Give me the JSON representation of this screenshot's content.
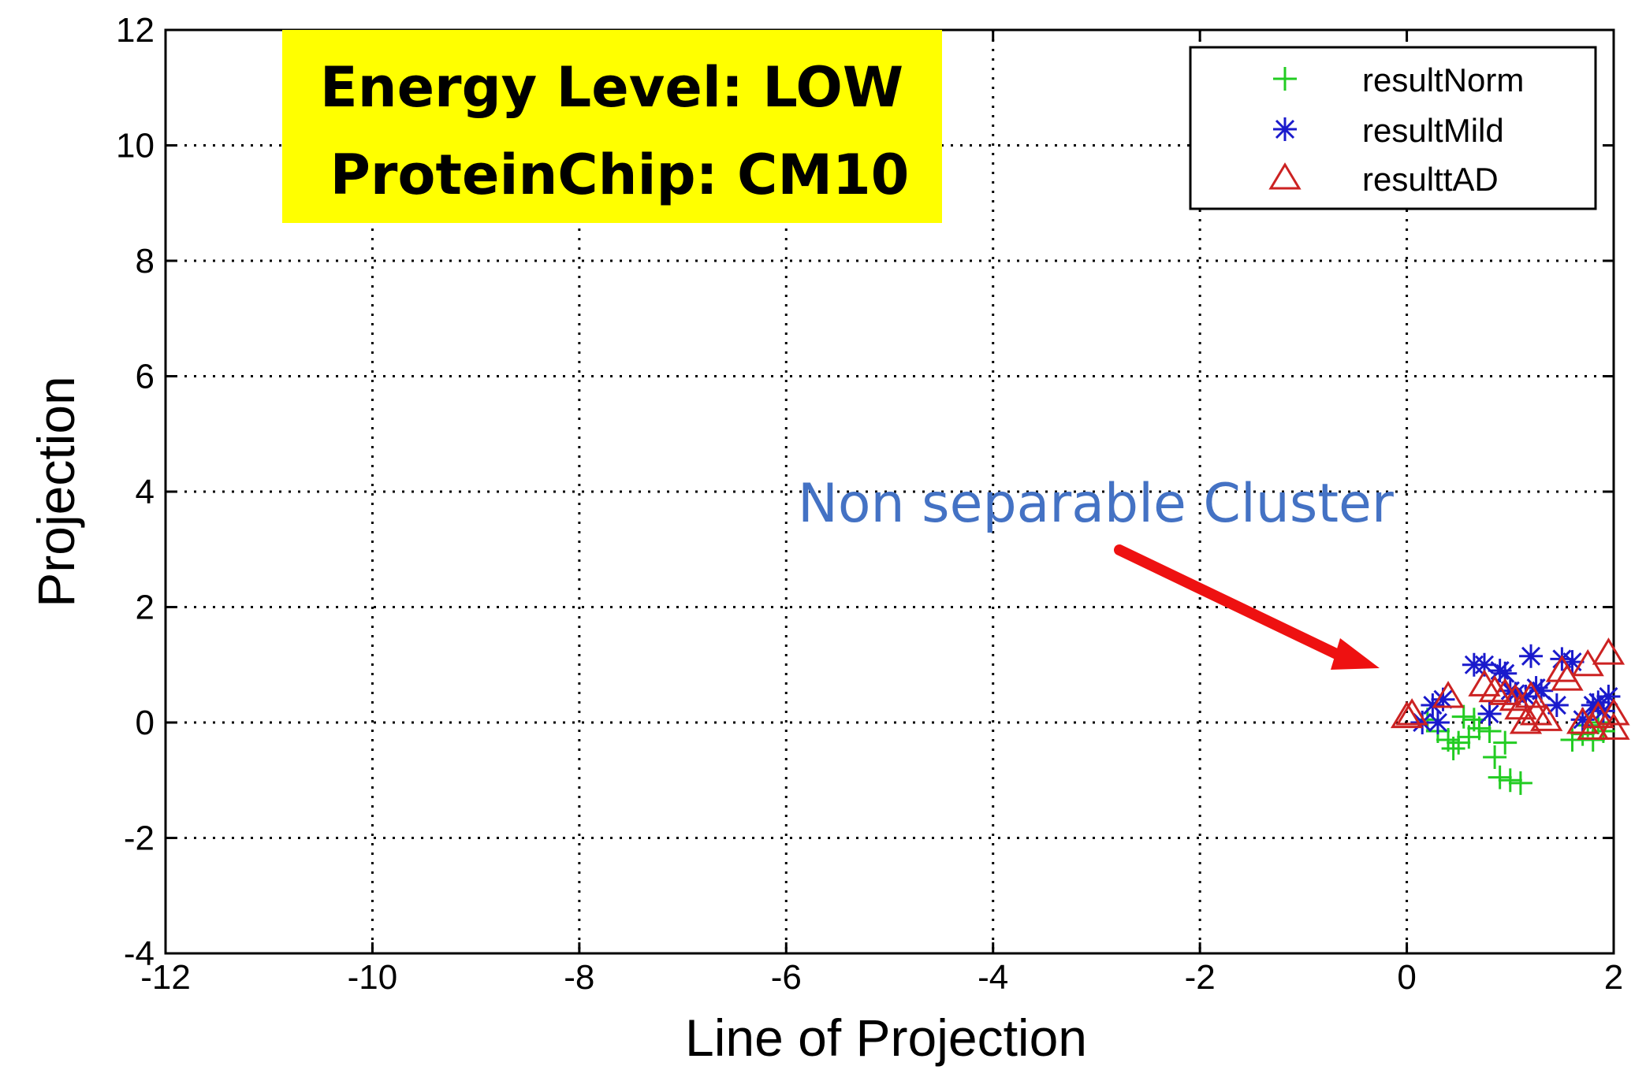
{
  "colors": {
    "norm": "#22cc22",
    "mild": "#1a1acc",
    "ad": "#cc2222",
    "banner": "#ffff00",
    "annotation": "#4472c4",
    "arrow": "#ee1111"
  },
  "banner": {
    "line1": "Energy Level: LOW",
    "line2": "ProteinChip: CM10"
  },
  "annotation": {
    "text": "Non separable Cluster"
  },
  "chart_data": {
    "type": "scatter",
    "title": "",
    "xlabel": "Line of Projection",
    "ylabel": "Projection",
    "xlim": [
      -12,
      2
    ],
    "ylim": [
      -4,
      12
    ],
    "grid": true,
    "xticks": [
      -12,
      -10,
      -8,
      -6,
      -4,
      -2,
      0,
      2
    ],
    "yticks": [
      -4,
      -2,
      0,
      2,
      4,
      6,
      8,
      10,
      12
    ],
    "legend_position": "top-right",
    "series": [
      {
        "name": "resultNorm",
        "marker": "plus",
        "color": "#22cc22",
        "x": [
          0.2,
          0.3,
          0.4,
          0.45,
          0.5,
          0.55,
          0.6,
          0.65,
          0.7,
          0.8,
          0.85,
          0.9,
          0.95,
          1.0,
          1.1,
          1.6,
          1.7,
          1.75,
          1.8,
          1.85,
          1.9
        ],
        "y": [
          0.05,
          -0.15,
          -0.3,
          -0.45,
          -0.35,
          0.1,
          -0.25,
          0.05,
          -0.1,
          -0.15,
          -0.6,
          -0.95,
          -0.35,
          -1.0,
          -1.05,
          -0.3,
          -0.2,
          -0.05,
          -0.3,
          0.0,
          -0.15
        ]
      },
      {
        "name": "resultMild",
        "marker": "star",
        "color": "#1a1acc",
        "x": [
          0.15,
          0.25,
          0.3,
          0.35,
          0.65,
          0.75,
          0.8,
          0.9,
          0.95,
          1.0,
          1.05,
          1.15,
          1.2,
          1.25,
          1.3,
          1.45,
          1.5,
          1.6,
          1.7,
          1.8,
          1.85,
          1.9,
          1.95
        ],
        "y": [
          0.0,
          0.3,
          0.0,
          0.4,
          1.0,
          1.0,
          0.15,
          0.9,
          0.85,
          0.55,
          0.5,
          0.45,
          1.15,
          0.6,
          0.55,
          0.3,
          1.1,
          1.05,
          0.05,
          0.3,
          0.35,
          0.2,
          0.45
        ]
      },
      {
        "name": "resulttAD",
        "marker": "triangle",
        "color": "#cc2222",
        "x": [
          0.0,
          0.05,
          0.4,
          0.75,
          0.85,
          0.95,
          1.05,
          1.1,
          1.15,
          1.2,
          1.25,
          1.35,
          1.5,
          1.55,
          1.7,
          1.75,
          1.8,
          1.85,
          1.95,
          2.0,
          2.0
        ],
        "y": [
          0.1,
          0.15,
          0.45,
          0.65,
          0.55,
          0.5,
          0.4,
          0.25,
          0.0,
          0.45,
          0.15,
          0.05,
          0.9,
          0.75,
          0.0,
          1.0,
          -0.1,
          0.1,
          1.2,
          0.15,
          -0.1
        ]
      }
    ]
  }
}
